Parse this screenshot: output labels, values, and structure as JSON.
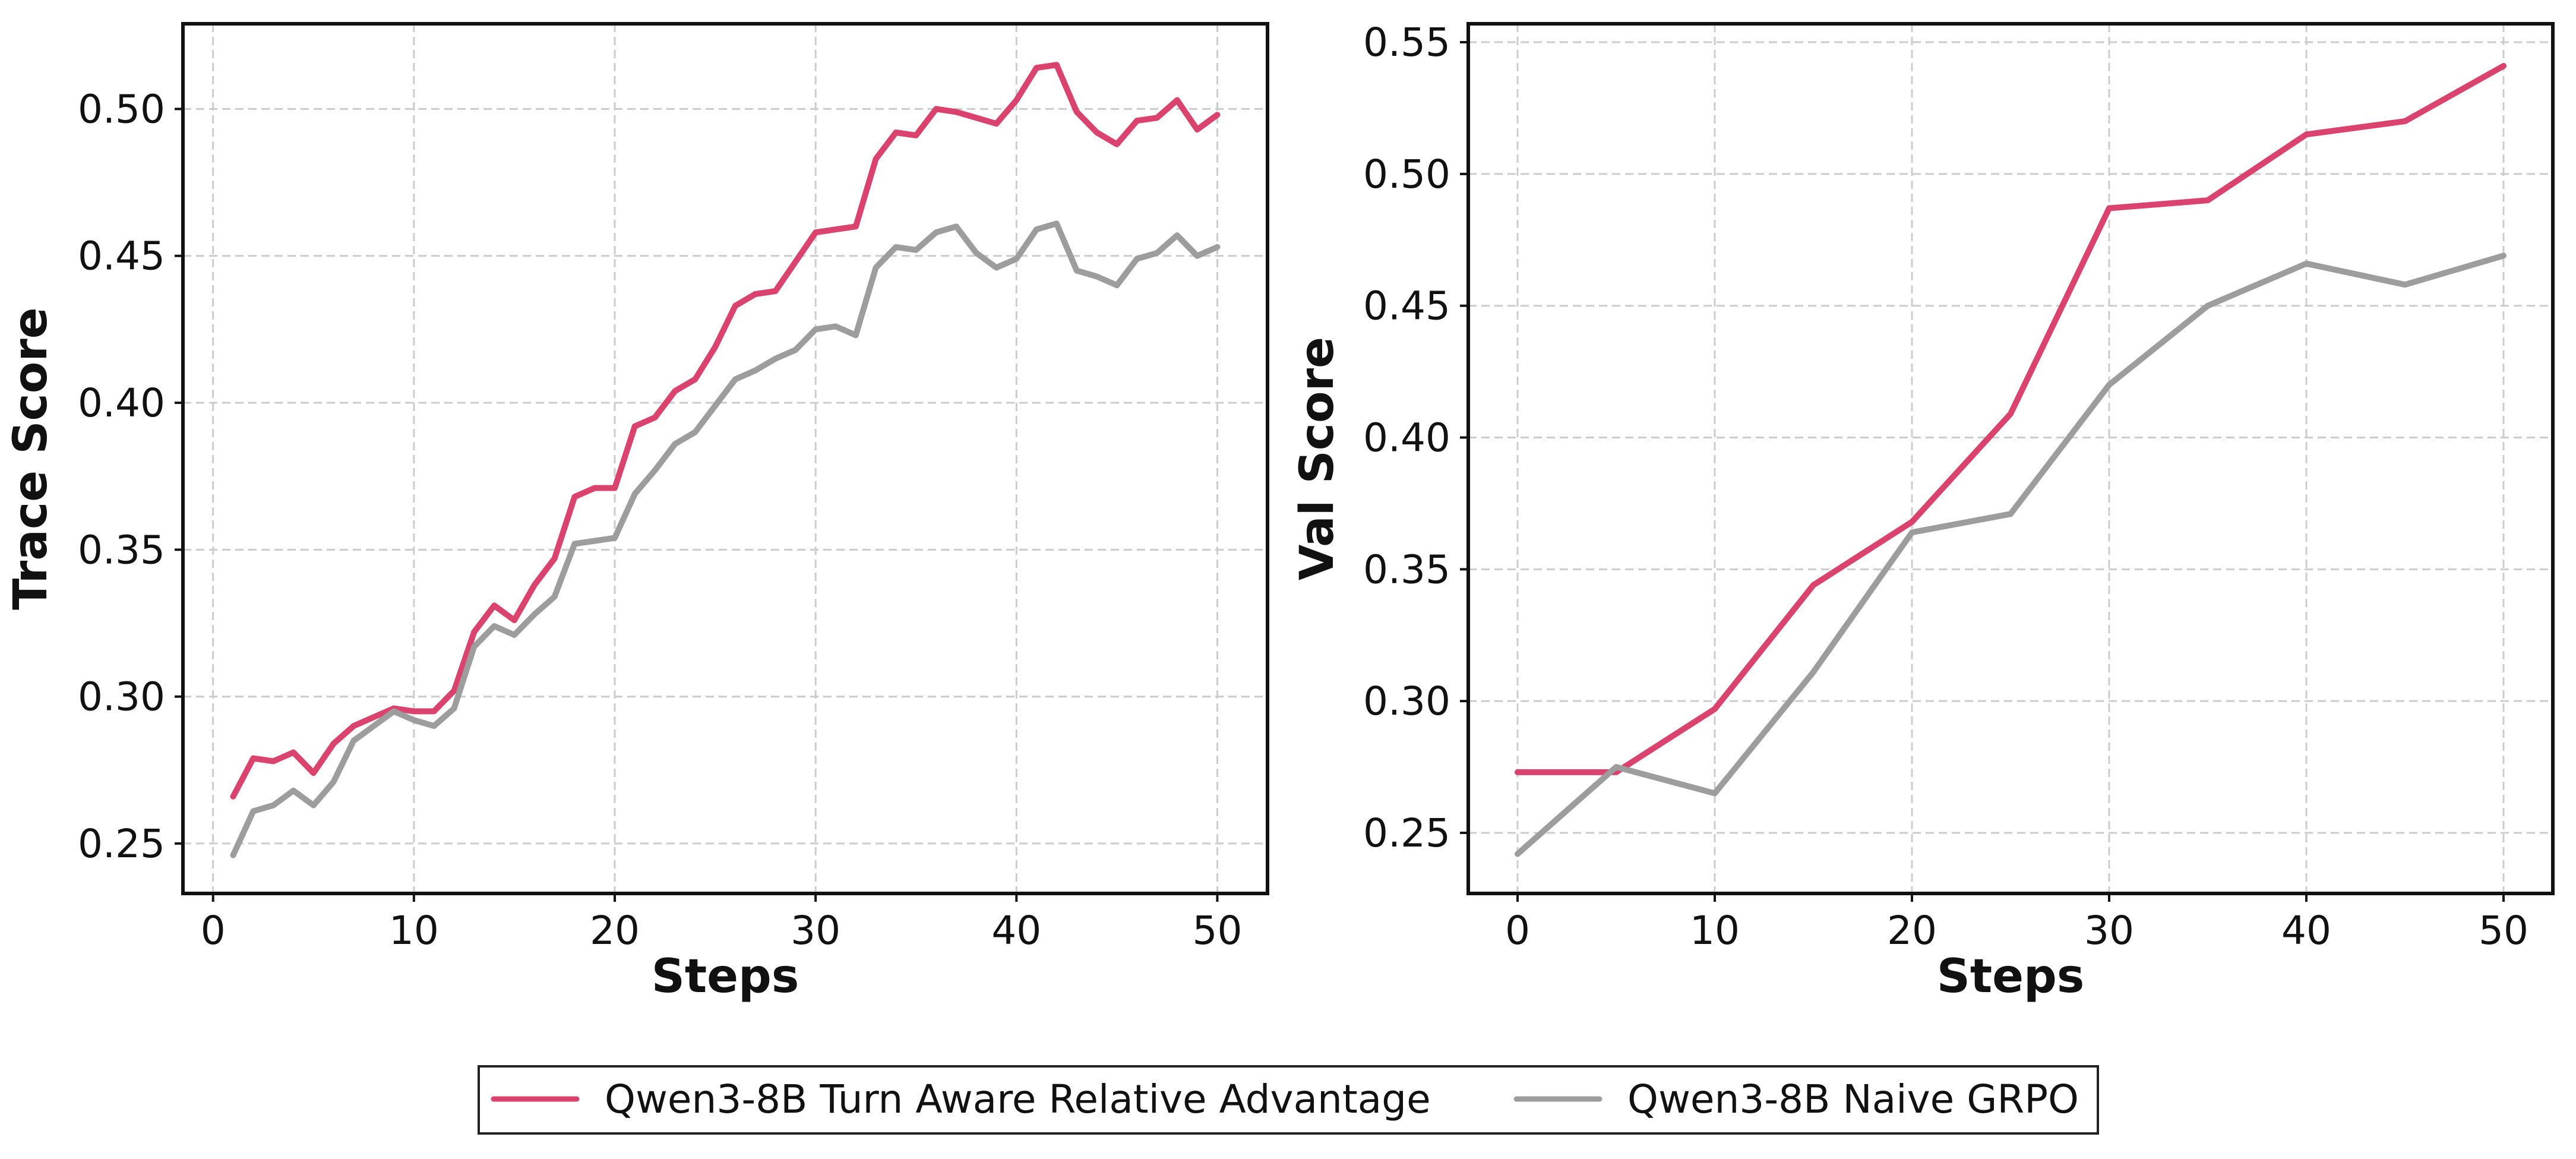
{
  "chart_data": [
    {
      "type": "line",
      "xlabel": "Steps",
      "ylabel": "Trace Score",
      "xlim": [
        -1.5,
        52.5
      ],
      "ylim": [
        0.233,
        0.529
      ],
      "xticks": [
        0,
        10,
        20,
        30,
        40,
        50
      ],
      "yticks": [
        0.25,
        0.3,
        0.35,
        0.4,
        0.45,
        0.5
      ],
      "xtick_labels": [
        "0",
        "10",
        "20",
        "30",
        "40",
        "50"
      ],
      "ytick_labels": [
        "0.25",
        "0.30",
        "0.35",
        "0.40",
        "0.45",
        "0.50"
      ],
      "grid": true,
      "x": [
        1,
        2,
        3,
        4,
        5,
        6,
        7,
        8,
        9,
        10,
        11,
        12,
        13,
        14,
        15,
        16,
        17,
        18,
        19,
        20,
        21,
        22,
        23,
        24,
        25,
        26,
        27,
        28,
        29,
        30,
        31,
        32,
        33,
        34,
        35,
        36,
        37,
        38,
        39,
        40,
        41,
        42,
        43,
        44,
        45,
        46,
        47,
        48,
        49,
        50
      ],
      "series": [
        {
          "name": "Qwen3-8B Turn Aware Relative Advantage",
          "color": "#d9436e",
          "values": [
            0.266,
            0.279,
            0.278,
            0.281,
            0.274,
            0.284,
            0.29,
            0.293,
            0.296,
            0.295,
            0.295,
            0.302,
            0.322,
            0.331,
            0.326,
            0.338,
            0.347,
            0.368,
            0.371,
            0.371,
            0.392,
            0.395,
            0.404,
            0.408,
            0.419,
            0.433,
            0.437,
            0.438,
            0.448,
            0.458,
            0.459,
            0.46,
            0.483,
            0.492,
            0.491,
            0.5,
            0.499,
            0.497,
            0.495,
            0.503,
            0.514,
            0.515,
            0.499,
            0.492,
            0.488,
            0.496,
            0.497,
            0.503,
            0.493,
            0.498
          ]
        },
        {
          "name": "Qwen3-8B Naive GRPO",
          "color": "#9d9d9d",
          "values": [
            0.246,
            0.261,
            0.263,
            0.268,
            0.263,
            0.271,
            0.285,
            0.29,
            0.295,
            0.292,
            0.29,
            0.296,
            0.317,
            0.324,
            0.321,
            0.328,
            0.334,
            0.352,
            0.353,
            0.354,
            0.369,
            0.377,
            0.386,
            0.39,
            0.399,
            0.408,
            0.411,
            0.415,
            0.418,
            0.425,
            0.426,
            0.423,
            0.446,
            0.453,
            0.452,
            0.458,
            0.46,
            0.451,
            0.446,
            0.449,
            0.459,
            0.461,
            0.445,
            0.443,
            0.44,
            0.449,
            0.451,
            0.457,
            0.45,
            0.453
          ]
        }
      ]
    },
    {
      "type": "line",
      "xlabel": "Steps",
      "ylabel": "Val Score",
      "xlim": [
        -2.5,
        52.5
      ],
      "ylim": [
        0.227,
        0.557
      ],
      "xticks": [
        0,
        10,
        20,
        30,
        40,
        50
      ],
      "yticks": [
        0.25,
        0.3,
        0.35,
        0.4,
        0.45,
        0.5,
        0.55
      ],
      "xtick_labels": [
        "0",
        "10",
        "20",
        "30",
        "40",
        "50"
      ],
      "ytick_labels": [
        "0.25",
        "0.30",
        "0.35",
        "0.40",
        "0.45",
        "0.50",
        "0.55"
      ],
      "grid": true,
      "x": [
        0,
        5,
        10,
        15,
        20,
        25,
        30,
        35,
        40,
        45,
        50
      ],
      "series": [
        {
          "name": "Qwen3-8B Turn Aware Relative Advantage",
          "color": "#d9436e",
          "values": [
            0.273,
            0.273,
            0.297,
            0.344,
            0.368,
            0.409,
            0.487,
            0.49,
            0.515,
            0.52,
            0.541
          ]
        },
        {
          "name": "Qwen3-8B Naive GRPO",
          "color": "#9d9d9d",
          "values": [
            0.242,
            0.275,
            0.265,
            0.311,
            0.364,
            0.371,
            0.42,
            0.45,
            0.466,
            0.458,
            0.469
          ]
        }
      ]
    }
  ],
  "legend": {
    "position": "bottom-center",
    "entries": [
      {
        "label": "Qwen3-8B Turn Aware Relative Advantage",
        "color": "#d9436e"
      },
      {
        "label": "Qwen3-8B Naive GRPO",
        "color": "#9d9d9d"
      }
    ]
  }
}
